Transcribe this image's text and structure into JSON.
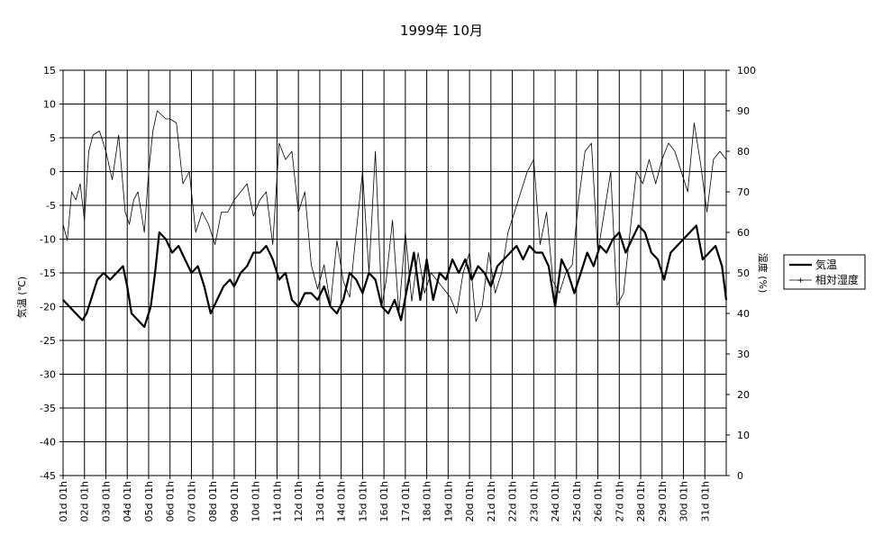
{
  "chart_data": {
    "type": "line",
    "title": "1999年 10月",
    "ylabel": "気温 (℃)",
    "y2label": "湿度 (%)",
    "ylim": [
      -45,
      15
    ],
    "y2lim": [
      0,
      100
    ],
    "yticks": [
      15,
      10,
      5,
      0,
      -5,
      -10,
      -15,
      -20,
      -25,
      -30,
      -35,
      -40,
      -45
    ],
    "y2ticks": [
      100,
      90,
      80,
      70,
      60,
      50,
      40,
      30,
      20,
      10,
      0
    ],
    "xlim": [
      1,
      32
    ],
    "categories": [
      "01d 01h",
      "02d 01h",
      "03d 01h",
      "04d 01h",
      "05d 01h",
      "06d 01h",
      "07d 01h",
      "08d 01h",
      "09d 01h",
      "10d 01h",
      "11d 01h",
      "12d 01h",
      "13d 01h",
      "14d 01h",
      "15d 01h",
      "16d 01h",
      "17d 01h",
      "18d 01h",
      "19d 01h",
      "20d 01h",
      "21d 01h",
      "22d 01h",
      "23d 01h",
      "24d 01h",
      "25d 01h",
      "26d 01h",
      "27d 01h",
      "28d 01h",
      "29d 01h",
      "30d 01h",
      "31d 01h"
    ],
    "grid": true,
    "legend_position": "right",
    "series": [
      {
        "name": "気温",
        "axis": "left",
        "color": "#000000",
        "x": [
          1.0,
          1.3,
          1.6,
          1.9,
          2.1,
          2.3,
          2.6,
          2.9,
          3.2,
          3.5,
          3.8,
          4.0,
          4.2,
          4.5,
          4.8,
          5.1,
          5.3,
          5.5,
          5.8,
          6.1,
          6.4,
          6.7,
          7.0,
          7.3,
          7.6,
          7.9,
          8.2,
          8.5,
          8.8,
          9.0,
          9.3,
          9.6,
          9.9,
          10.2,
          10.5,
          10.8,
          11.1,
          11.4,
          11.7,
          12.0,
          12.3,
          12.6,
          12.9,
          13.2,
          13.5,
          13.8,
          14.1,
          14.4,
          14.7,
          15.0,
          15.3,
          15.6,
          15.9,
          16.2,
          16.5,
          16.8,
          17.1,
          17.4,
          17.7,
          18.0,
          18.3,
          18.6,
          18.9,
          19.2,
          19.5,
          19.8,
          20.1,
          20.4,
          20.7,
          21.0,
          21.3,
          21.6,
          21.9,
          22.2,
          22.5,
          22.8,
          23.1,
          23.4,
          23.7,
          24.0,
          24.3,
          24.6,
          24.9,
          25.2,
          25.5,
          25.8,
          26.1,
          26.4,
          26.7,
          27.0,
          27.3,
          27.6,
          27.9,
          28.2,
          28.5,
          28.8,
          29.1,
          29.4,
          29.7,
          30.0,
          30.3,
          30.6,
          30.9,
          31.2,
          31.5,
          31.8,
          32.0
        ],
        "values": [
          -19,
          -20,
          -21,
          -22,
          -21,
          -19,
          -16,
          -15,
          -16,
          -15,
          -14,
          -17,
          -21,
          -22,
          -23,
          -20,
          -15,
          -9,
          -10,
          -12,
          -11,
          -13,
          -15,
          -14,
          -17,
          -21,
          -19,
          -17,
          -16,
          -17,
          -15,
          -14,
          -12,
          -12,
          -11,
          -13,
          -16,
          -15,
          -19,
          -20,
          -18,
          -18,
          -19,
          -17,
          -20,
          -21,
          -19,
          -15,
          -16,
          -18,
          -15,
          -16,
          -20,
          -21,
          -19,
          -22,
          -17,
          -12,
          -19,
          -13,
          -19,
          -15,
          -16,
          -13,
          -15,
          -13,
          -16,
          -14,
          -15,
          -17,
          -14,
          -13,
          -12,
          -11,
          -13,
          -11,
          -12,
          -12,
          -14,
          -20,
          -13,
          -15,
          -18,
          -15,
          -12,
          -14,
          -11,
          -12,
          -10,
          -9,
          -12,
          -10,
          -8,
          -9,
          -12,
          -13,
          -16,
          -12,
          -11,
          -10,
          -9,
          -8,
          -13,
          -12,
          -11,
          -14,
          -19
        ]
      },
      {
        "name": "相対湿度",
        "axis": "right",
        "color": "#000000",
        "x": [
          1.0,
          1.2,
          1.4,
          1.6,
          1.8,
          2.0,
          2.2,
          2.4,
          2.7,
          3.0,
          3.3,
          3.6,
          3.9,
          4.1,
          4.3,
          4.5,
          4.8,
          5.0,
          5.2,
          5.4,
          5.6,
          5.8,
          6.0,
          6.3,
          6.6,
          6.9,
          7.2,
          7.5,
          7.8,
          8.1,
          8.4,
          8.7,
          9.0,
          9.3,
          9.6,
          9.9,
          10.2,
          10.5,
          10.8,
          11.1,
          11.4,
          11.7,
          12.0,
          12.3,
          12.6,
          12.9,
          13.2,
          13.5,
          13.8,
          14.1,
          14.4,
          14.7,
          15.0,
          15.3,
          15.6,
          15.9,
          16.1,
          16.4,
          16.7,
          17.0,
          17.3,
          17.6,
          17.9,
          18.2,
          18.5,
          18.8,
          19.1,
          19.4,
          19.7,
          20.0,
          20.3,
          20.6,
          20.9,
          21.2,
          21.5,
          21.8,
          22.1,
          22.4,
          22.7,
          23.0,
          23.3,
          23.6,
          23.9,
          24.2,
          24.5,
          24.8,
          25.1,
          25.4,
          25.7,
          26.0,
          26.3,
          26.6,
          26.9,
          27.2,
          27.5,
          27.8,
          28.1,
          28.4,
          28.7,
          29.0,
          29.3,
          29.6,
          29.9,
          30.2,
          30.5,
          30.8,
          31.1,
          31.4,
          31.7,
          32.0
        ],
        "values": [
          62,
          58,
          70,
          68,
          72,
          63,
          80,
          84,
          85,
          80,
          73,
          84,
          65,
          62,
          68,
          70,
          60,
          75,
          85,
          90,
          89,
          88,
          88,
          87,
          72,
          75,
          60,
          65,
          62,
          57,
          65,
          65,
          68,
          70,
          72,
          64,
          68,
          70,
          57,
          82,
          78,
          80,
          65,
          70,
          52,
          46,
          52,
          42,
          58,
          48,
          44,
          60,
          75,
          50,
          80,
          42,
          48,
          63,
          40,
          60,
          43,
          55,
          45,
          50,
          48,
          46,
          44,
          40,
          50,
          55,
          38,
          42,
          55,
          45,
          50,
          60,
          65,
          70,
          75,
          78,
          57,
          65,
          48,
          45,
          50,
          52,
          68,
          80,
          82,
          55,
          65,
          75,
          42,
          45,
          60,
          75,
          72,
          78,
          72,
          78,
          82,
          80,
          75,
          70,
          87,
          77,
          65,
          78,
          80,
          78
        ]
      }
    ]
  }
}
